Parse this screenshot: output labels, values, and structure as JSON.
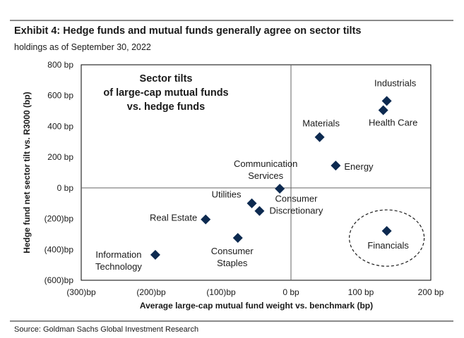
{
  "title": "Exhibit 4: Hedge funds and mutual funds generally agree on sector tilts",
  "subtitle": "holdings as of September 30, 2022",
  "source": "Source: Goldman Sachs Global Investment Research",
  "colors": {
    "marker": "#0d2a50",
    "rule": "#8a8a8a",
    "frame": "#000000"
  },
  "chart_data": {
    "type": "scatter",
    "title": "Sector tilts of large-cap mutual funds vs. hedge funds",
    "inset_title": [
      "Sector tilts",
      "of large-cap mutual funds",
      "vs. hedge funds"
    ],
    "xlabel": "Average large-cap mutual fund weight vs. benchmark (bp)",
    "ylabel": "Hedge fund net sector tilt vs. R3000 (bp)",
    "xlim": [
      -300,
      200
    ],
    "ylim": [
      -600,
      800
    ],
    "xticks": [
      -300,
      -200,
      -100,
      0,
      100,
      200
    ],
    "xtick_labels": [
      "(300)bp",
      "(200)bp",
      "(100)bp",
      "0 bp",
      "100 bp",
      "200 bp"
    ],
    "yticks": [
      800,
      600,
      400,
      200,
      0,
      -200,
      -400,
      -600
    ],
    "ytick_labels": [
      "800 bp",
      "600 bp",
      "400 bp",
      "200 bp",
      "0 bp",
      "(200)bp",
      "(400)bp",
      "(600)bp"
    ],
    "grid": false,
    "highlight": "Financials",
    "points": [
      {
        "name": "Industrials",
        "label": [
          "Industrials"
        ],
        "x": 137,
        "y": 565
      },
      {
        "name": "Health Care",
        "label": [
          "Health Care"
        ],
        "x": 132,
        "y": 505
      },
      {
        "name": "Materials",
        "label": [
          "Materials"
        ],
        "x": 41,
        "y": 330
      },
      {
        "name": "Energy",
        "label": [
          "Energy"
        ],
        "x": 64,
        "y": 145
      },
      {
        "name": "Communication Services",
        "label": [
          "Communication",
          "Services"
        ],
        "x": -16,
        "y": -5
      },
      {
        "name": "Utilities",
        "label": [
          "Utilities"
        ],
        "x": -56,
        "y": -100
      },
      {
        "name": "Consumer Discretionary",
        "label": [
          "Consumer",
          "Discretionary"
        ],
        "x": -45,
        "y": -150
      },
      {
        "name": "Real Estate",
        "label": [
          "Real Estate"
        ],
        "x": -122,
        "y": -205
      },
      {
        "name": "Consumer Staples",
        "label": [
          "Consumer",
          "Staples"
        ],
        "x": -76,
        "y": -325
      },
      {
        "name": "Information Technology",
        "label": [
          "Information",
          "Technology"
        ],
        "x": -194,
        "y": -435
      },
      {
        "name": "Financials",
        "label": [
          "Financials"
        ],
        "x": 137,
        "y": -280
      }
    ]
  }
}
